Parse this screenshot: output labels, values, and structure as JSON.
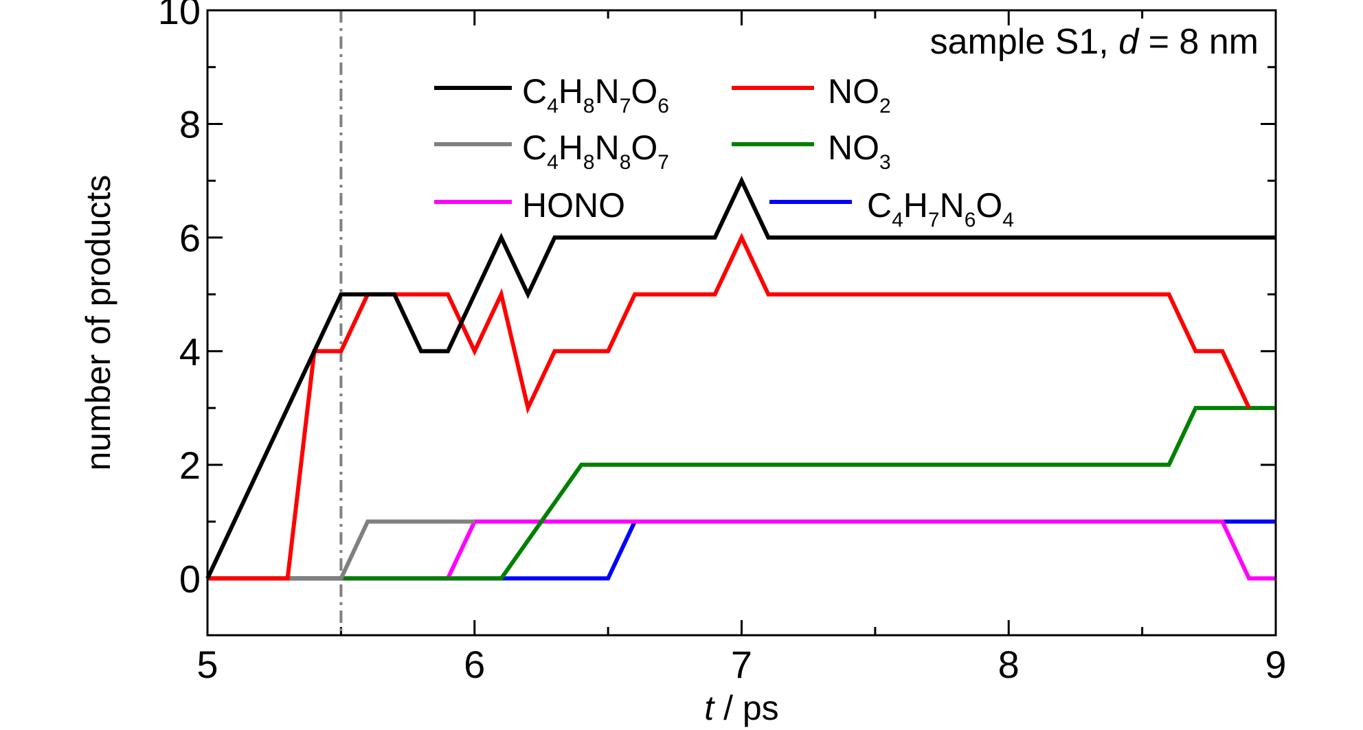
{
  "chart_data": {
    "type": "line",
    "xlabel": {
      "italic": "t",
      "rest": " / ps"
    },
    "ylabel": "number of products",
    "xlim": [
      5,
      9
    ],
    "ylim": [
      -1,
      10
    ],
    "xticks": [
      5,
      6,
      7,
      8,
      9
    ],
    "yticks": [
      0,
      2,
      4,
      6,
      8,
      10
    ],
    "xminor": [
      5.5,
      6.5,
      7.5,
      8.5
    ],
    "yminor": [
      1,
      3,
      5,
      7,
      9
    ],
    "vline": {
      "x": 5.5,
      "color": "#808080",
      "style": "dash-dot"
    },
    "annotation": {
      "pre": "sample S1, ",
      "italic": "d",
      "post": " = 8 nm"
    },
    "legend_placement": "top-center",
    "series": [
      {
        "name": [
          [
            "C",
            ""
          ],
          [
            "4",
            "sub"
          ],
          [
            "H",
            ""
          ],
          [
            "8",
            "sub"
          ],
          [
            "N",
            ""
          ],
          [
            "7",
            "sub"
          ],
          [
            "O",
            ""
          ],
          [
            "6",
            "sub"
          ]
        ],
        "color": "#000000",
        "x": [
          5.0,
          5.4,
          5.5,
          5.6,
          5.7,
          5.8,
          5.9,
          6.0,
          6.1,
          6.2,
          6.3,
          6.9,
          7.0,
          7.1,
          9.0
        ],
        "y": [
          0,
          4,
          5,
          5,
          5,
          4,
          4,
          5,
          6,
          5,
          6,
          6,
          7,
          6,
          6
        ]
      },
      {
        "name": [
          [
            "NO",
            ""
          ],
          [
            "2",
            "sub"
          ]
        ],
        "color": "#ff0000",
        "x": [
          5.0,
          5.3,
          5.4,
          5.5,
          5.6,
          5.9,
          6.0,
          6.1,
          6.2,
          6.3,
          6.5,
          6.6,
          6.9,
          7.0,
          7.1,
          8.6,
          8.7,
          8.8,
          8.9
        ],
        "y": [
          0,
          0,
          4,
          4,
          5,
          5,
          4,
          5,
          3,
          4,
          4,
          5,
          5,
          6,
          5,
          5,
          4,
          4,
          3
        ]
      },
      {
        "name": [
          [
            "C",
            ""
          ],
          [
            "4",
            "sub"
          ],
          [
            "H",
            ""
          ],
          [
            "8",
            "sub"
          ],
          [
            "N",
            ""
          ],
          [
            "8",
            "sub"
          ],
          [
            "O",
            ""
          ],
          [
            "7",
            "sub"
          ]
        ],
        "color": "#808080",
        "x": [
          5.0,
          5.5,
          5.6,
          6.0
        ],
        "y": [
          0,
          0,
          1,
          1
        ]
      },
      {
        "name": [
          [
            "NO",
            ""
          ],
          [
            "3",
            "sub"
          ]
        ],
        "color": "#008000",
        "x": [
          5.0,
          6.1,
          6.4,
          8.6,
          8.7,
          9.0
        ],
        "y": [
          0,
          0,
          2,
          2,
          3,
          3
        ]
      },
      {
        "name": [
          [
            "HONO",
            ""
          ]
        ],
        "color": "#ff00ff",
        "x": [
          5.0,
          5.9,
          6.0,
          8.8,
          8.9,
          9.0
        ],
        "y": [
          0,
          0,
          1,
          1,
          0,
          0
        ]
      },
      {
        "name": [
          [
            "C",
            ""
          ],
          [
            "4",
            "sub"
          ],
          [
            "H",
            ""
          ],
          [
            "7",
            "sub"
          ],
          [
            "N",
            ""
          ],
          [
            "6",
            "sub"
          ],
          [
            "O",
            ""
          ],
          [
            "4",
            "sub"
          ]
        ],
        "color": "#0000ff",
        "x": [
          5.0,
          6.5,
          6.6,
          9.0
        ],
        "y": [
          0,
          0,
          1,
          1
        ]
      }
    ]
  }
}
